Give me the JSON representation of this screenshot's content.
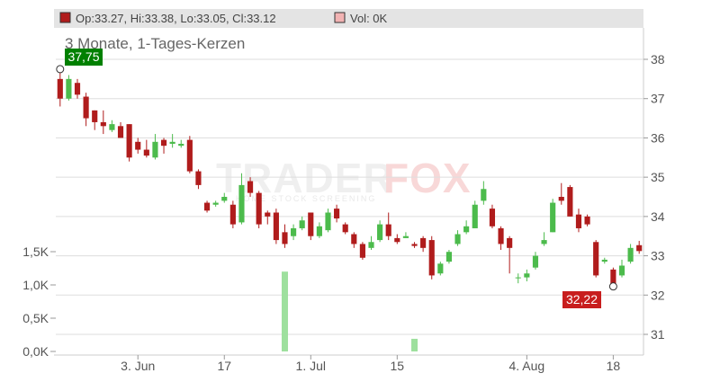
{
  "legend": {
    "ohlc_text": "Op:33.27, Hi:33.38, Lo:33.05, Cl:33.12",
    "vol_text": "Vol: 0K"
  },
  "subtitle": "3 Monate, 1-Tages-Kerzen",
  "watermark": {
    "brand_left": "TRADER",
    "brand_right": "FOX",
    "tagline": "HOME STOCK SCREENING"
  },
  "colors": {
    "up": "#4cbb4c",
    "down": "#b01c1c",
    "volume": "#9ee09e",
    "max_badge": "#008000",
    "min_badge": "#c81e1e",
    "legend_bg": "#e4e4e4",
    "grid": "#dddddd",
    "axis_text": "#555555"
  },
  "chart_data": {
    "type": "candlestick",
    "title": "3 Monate, 1-Tages-Kerzen",
    "price_axis": {
      "ticks": [
        31,
        32,
        33,
        34,
        35,
        36,
        37,
        38
      ],
      "range": [
        30.7,
        38.9
      ]
    },
    "volume_axis": {
      "ticks": [
        "0,0K",
        "0,5K",
        "1,0K",
        "1,5K"
      ],
      "tick_values": [
        0,
        0.5,
        1.0,
        1.5
      ],
      "range": [
        0,
        1.63
      ]
    },
    "x_ticks": [
      {
        "label": "3. Jun",
        "index": 9
      },
      {
        "label": "17",
        "index": 19
      },
      {
        "label": "1. Jul",
        "index": 29
      },
      {
        "label": "15",
        "index": 39
      },
      {
        "label": "4. Aug",
        "index": 54
      },
      {
        "label": "18",
        "index": 64
      }
    ],
    "max_label": {
      "text": "37,75",
      "value": 37.75,
      "index": 0
    },
    "min_label": {
      "text": "32,22",
      "value": 32.22,
      "index": 64
    },
    "candles": [
      {
        "o": 37.5,
        "h": 37.75,
        "l": 36.8,
        "c": 37.0
      },
      {
        "o": 37.0,
        "h": 37.6,
        "l": 36.95,
        "c": 37.5
      },
      {
        "o": 37.4,
        "h": 37.5,
        "l": 37.0,
        "c": 37.1
      },
      {
        "o": 37.05,
        "h": 37.15,
        "l": 36.3,
        "c": 36.5
      },
      {
        "o": 36.7,
        "h": 36.7,
        "l": 36.2,
        "c": 36.4
      },
      {
        "o": 36.4,
        "h": 36.7,
        "l": 36.1,
        "c": 36.3
      },
      {
        "o": 36.2,
        "h": 36.45,
        "l": 36.15,
        "c": 36.35
      },
      {
        "o": 36.3,
        "h": 36.4,
        "l": 36.0,
        "c": 36.0
      },
      {
        "o": 36.35,
        "h": 36.35,
        "l": 35.4,
        "c": 35.5
      },
      {
        "o": 35.9,
        "h": 36.0,
        "l": 35.6,
        "c": 35.7
      },
      {
        "o": 35.7,
        "h": 35.95,
        "l": 35.5,
        "c": 35.55
      },
      {
        "o": 35.5,
        "h": 36.1,
        "l": 35.45,
        "c": 35.9
      },
      {
        "o": 35.95,
        "h": 36.0,
        "l": 35.6,
        "c": 35.8
      },
      {
        "o": 35.85,
        "h": 36.1,
        "l": 35.75,
        "c": 35.9
      },
      {
        "o": 35.8,
        "h": 35.95,
        "l": 35.75,
        "c": 35.85
      },
      {
        "o": 35.95,
        "h": 36.05,
        "l": 35.1,
        "c": 35.15
      },
      {
        "o": 35.15,
        "h": 35.2,
        "l": 34.7,
        "c": 34.8
      },
      {
        "o": 34.35,
        "h": 34.4,
        "l": 34.1,
        "c": 34.15
      },
      {
        "o": 34.3,
        "h": 34.4,
        "l": 34.25,
        "c": 34.35
      },
      {
        "o": 34.4,
        "h": 34.6,
        "l": 34.35,
        "c": 34.5
      },
      {
        "o": 34.3,
        "h": 34.4,
        "l": 33.7,
        "c": 33.8
      },
      {
        "o": 33.85,
        "h": 35.1,
        "l": 33.8,
        "c": 34.8
      },
      {
        "o": 34.9,
        "h": 35.0,
        "l": 34.5,
        "c": 34.6
      },
      {
        "o": 34.6,
        "h": 34.65,
        "l": 33.7,
        "c": 33.8
      },
      {
        "o": 34.1,
        "h": 34.15,
        "l": 33.8,
        "c": 34.0
      },
      {
        "o": 34.1,
        "h": 34.2,
        "l": 33.3,
        "c": 33.4
      },
      {
        "o": 33.6,
        "h": 33.8,
        "l": 33.2,
        "c": 33.3
      },
      {
        "o": 33.5,
        "h": 33.8,
        "l": 33.4,
        "c": 33.7
      },
      {
        "o": 33.7,
        "h": 34.0,
        "l": 33.65,
        "c": 33.9
      },
      {
        "o": 34.1,
        "h": 34.1,
        "l": 33.4,
        "c": 33.5
      },
      {
        "o": 33.5,
        "h": 33.85,
        "l": 33.45,
        "c": 33.75
      },
      {
        "o": 33.65,
        "h": 34.2,
        "l": 33.6,
        "c": 34.1
      },
      {
        "o": 34.2,
        "h": 34.3,
        "l": 33.85,
        "c": 33.95
      },
      {
        "o": 33.8,
        "h": 33.85,
        "l": 33.55,
        "c": 33.6
      },
      {
        "o": 33.55,
        "h": 33.6,
        "l": 33.2,
        "c": 33.3
      },
      {
        "o": 33.3,
        "h": 33.35,
        "l": 32.9,
        "c": 32.95
      },
      {
        "o": 33.2,
        "h": 33.5,
        "l": 33.15,
        "c": 33.35
      },
      {
        "o": 33.4,
        "h": 33.9,
        "l": 33.35,
        "c": 33.8
      },
      {
        "o": 33.8,
        "h": 34.1,
        "l": 33.4,
        "c": 33.5
      },
      {
        "o": 33.45,
        "h": 33.55,
        "l": 33.3,
        "c": 33.35
      },
      {
        "o": 33.45,
        "h": 33.6,
        "l": 33.45,
        "c": 33.5
      },
      {
        "o": 33.3,
        "h": 33.35,
        "l": 33.2,
        "c": 33.25
      },
      {
        "o": 33.45,
        "h": 33.5,
        "l": 33.1,
        "c": 33.2
      },
      {
        "o": 33.4,
        "h": 33.5,
        "l": 32.4,
        "c": 32.5
      },
      {
        "o": 32.55,
        "h": 32.85,
        "l": 32.5,
        "c": 32.8
      },
      {
        "o": 32.85,
        "h": 33.15,
        "l": 32.8,
        "c": 33.1
      },
      {
        "o": 33.3,
        "h": 33.65,
        "l": 33.25,
        "c": 33.55
      },
      {
        "o": 33.6,
        "h": 33.9,
        "l": 33.55,
        "c": 33.75
      },
      {
        "o": 33.7,
        "h": 34.4,
        "l": 33.7,
        "c": 34.3
      },
      {
        "o": 34.4,
        "h": 34.9,
        "l": 34.3,
        "c": 34.7
      },
      {
        "o": 34.2,
        "h": 34.3,
        "l": 33.7,
        "c": 33.75
      },
      {
        "o": 33.7,
        "h": 33.75,
        "l": 33.15,
        "c": 33.3
      },
      {
        "o": 33.45,
        "h": 33.5,
        "l": 32.55,
        "c": 33.2
      },
      {
        "o": 32.45,
        "h": 32.55,
        "l": 32.3,
        "c": 32.45
      },
      {
        "o": 32.45,
        "h": 32.65,
        "l": 32.35,
        "c": 32.55
      },
      {
        "o": 32.7,
        "h": 33.1,
        "l": 32.65,
        "c": 33.0
      },
      {
        "o": 33.3,
        "h": 33.6,
        "l": 33.25,
        "c": 33.4
      },
      {
        "o": 33.6,
        "h": 34.45,
        "l": 33.6,
        "c": 34.35
      },
      {
        "o": 34.5,
        "h": 34.85,
        "l": 34.3,
        "c": 34.4
      },
      {
        "o": 34.75,
        "h": 34.8,
        "l": 34.0,
        "c": 34.0
      },
      {
        "o": 34.05,
        "h": 34.2,
        "l": 33.6,
        "c": 33.7
      },
      {
        "o": 34.0,
        "h": 34.05,
        "l": 33.75,
        "c": 33.8
      },
      {
        "o": 33.35,
        "h": 33.4,
        "l": 32.45,
        "c": 32.5
      },
      {
        "o": 32.85,
        "h": 32.95,
        "l": 32.8,
        "c": 32.9
      },
      {
        "o": 32.65,
        "h": 32.7,
        "l": 32.22,
        "c": 32.25
      },
      {
        "o": 32.5,
        "h": 32.9,
        "l": 32.45,
        "c": 32.75
      },
      {
        "o": 32.85,
        "h": 33.3,
        "l": 32.8,
        "c": 33.2
      },
      {
        "o": 33.27,
        "h": 33.38,
        "l": 33.05,
        "c": 33.12
      }
    ],
    "volume": [
      {
        "index": 26,
        "value": 1.2
      },
      {
        "index": 41,
        "value": 0.19
      }
    ]
  }
}
